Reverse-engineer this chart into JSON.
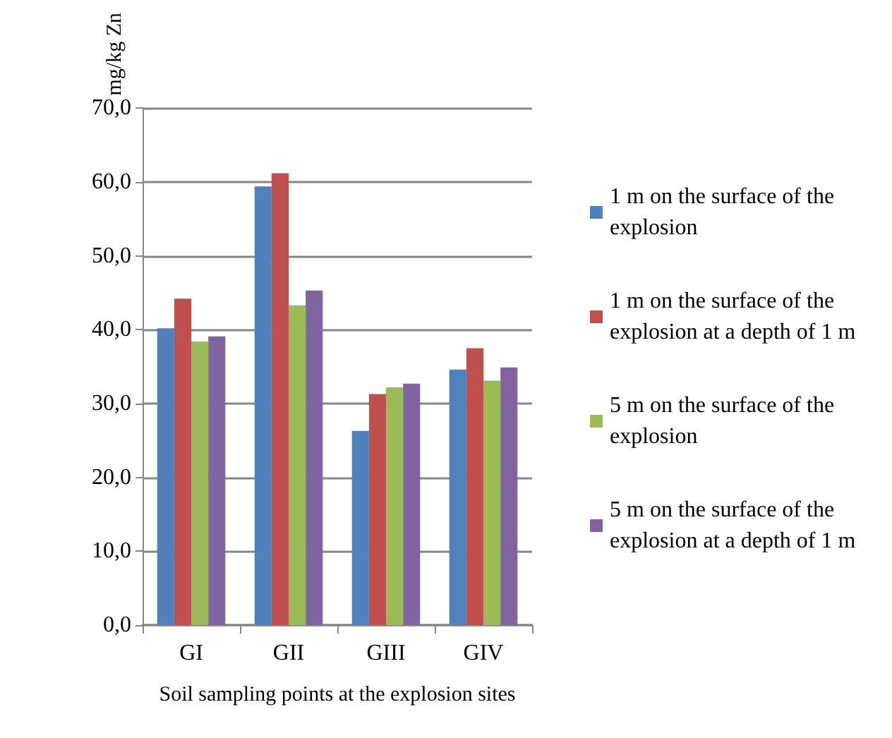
{
  "chart_data": {
    "type": "bar",
    "xlabel": "Soil sampling points at the explosion sites",
    "ylabel": "mg/kg Zn",
    "categories": [
      "GI",
      "GII",
      "GIII",
      "GIV"
    ],
    "series": [
      {
        "name": "1 m on the surface of the explosion",
        "color": "#4f81bd",
        "values": [
          40.2,
          59.4,
          26.3,
          34.6
        ]
      },
      {
        "name": "1 m on the surface of the explosion at a depth of 1 m",
        "color": "#c0504d",
        "values": [
          44.2,
          61.2,
          31.3,
          37.5
        ]
      },
      {
        "name": "5 m on the surface of the explosion",
        "color": "#9bbb59",
        "values": [
          38.4,
          43.3,
          32.2,
          33.1
        ]
      },
      {
        "name": "5 m on the surface of the explosion at a depth of 1 m",
        "color": "#8064a2",
        "values": [
          39.1,
          45.3,
          32.7,
          34.9
        ]
      }
    ],
    "ylim": [
      0,
      70
    ],
    "yticks": [
      {
        "value": 0,
        "label": "0,0"
      },
      {
        "value": 10,
        "label": "10,0"
      },
      {
        "value": 20,
        "label": "20,0"
      },
      {
        "value": 30,
        "label": "30,0"
      },
      {
        "value": 40,
        "label": "40,0"
      },
      {
        "value": 50,
        "label": "50,0"
      },
      {
        "value": 60,
        "label": "60,0"
      },
      {
        "value": 70,
        "label": "70,0"
      }
    ],
    "grid": "y",
    "legend": "right"
  }
}
